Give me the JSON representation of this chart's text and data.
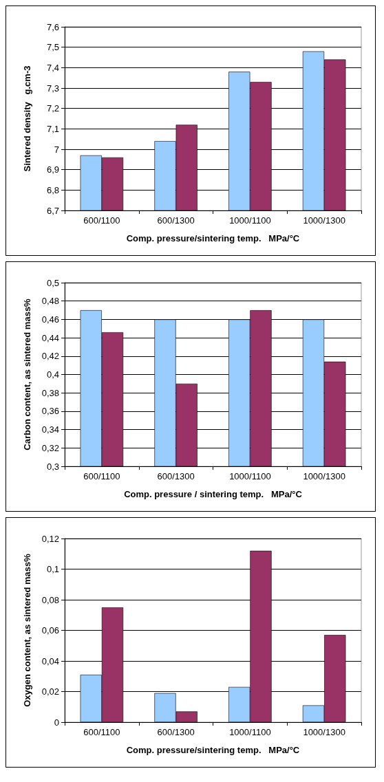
{
  "chart_data": [
    {
      "type": "bar",
      "xlabel": "Comp. pressure/sintering temp.   MPa/°C",
      "ylabel": "Sintered density   g.cm-3",
      "categories": [
        "600/1100",
        "600/1300",
        "1000/1100",
        "1000/1300"
      ],
      "series": [
        {
          "color": "#99ccff",
          "values": [
            6.97,
            7.04,
            7.38,
            7.48
          ]
        },
        {
          "color": "#993366",
          "values": [
            6.96,
            7.12,
            7.33,
            7.44
          ]
        }
      ],
      "ylim": [
        6.7,
        7.6
      ],
      "yticks": [
        {
          "value": 6.7,
          "label": "6,7"
        },
        {
          "value": 6.8,
          "label": "6,8"
        },
        {
          "value": 6.9,
          "label": "6,9"
        },
        7,
        {
          "value": 7.1,
          "label": "7,1"
        },
        {
          "value": 7.2,
          "label": "7,2"
        },
        {
          "value": 7.3,
          "label": "7,3"
        },
        {
          "value": 7.4,
          "label": "7,4"
        },
        {
          "value": 7.5,
          "label": "7,5"
        },
        {
          "value": 7.6,
          "label": "7,6"
        }
      ],
      "grid": "y"
    },
    {
      "type": "bar",
      "xlabel": "Comp. pressure / sintering temp.   MPa/°C",
      "ylabel": "Carbon content, as sintered mass%",
      "categories": [
        "600/1100",
        "600/1300",
        "1000/1100",
        "1000/1300"
      ],
      "series": [
        {
          "color": "#99ccff",
          "values": [
            0.47,
            0.46,
            0.46,
            0.46
          ]
        },
        {
          "color": "#993366",
          "values": [
            0.446,
            0.39,
            0.47,
            0.414
          ]
        }
      ],
      "ylim": [
        0.3,
        0.5
      ],
      "yticks": [
        {
          "value": 0.3,
          "label": "0,3"
        },
        {
          "value": 0.32,
          "label": "0,32"
        },
        {
          "value": 0.34,
          "label": "0,34"
        },
        {
          "value": 0.36,
          "label": "0,36"
        },
        {
          "value": 0.38,
          "label": "0,38"
        },
        {
          "value": 0.4,
          "label": "0,4"
        },
        {
          "value": 0.42,
          "label": "0,42"
        },
        {
          "value": 0.44,
          "label": "0,44"
        },
        {
          "value": 0.46,
          "label": "0,46"
        },
        {
          "value": 0.48,
          "label": "0,48"
        },
        {
          "value": 0.5,
          "label": "0,5"
        }
      ],
      "grid": "y"
    },
    {
      "type": "bar",
      "xlabel": "Comp. pressure/sintering temp.   MPa/°C",
      "ylabel": "Oxygen content, as sintered mass%",
      "categories": [
        "600/1100",
        "600/1300",
        "1000/1100",
        "1000/1300"
      ],
      "series": [
        {
          "color": "#99ccff",
          "values": [
            0.031,
            0.019,
            0.023,
            0.011
          ]
        },
        {
          "color": "#993366",
          "values": [
            0.075,
            0.007,
            0.112,
            0.057
          ]
        }
      ],
      "ylim": [
        0,
        0.12
      ],
      "yticks": [
        0,
        {
          "value": 0.02,
          "label": "0,02"
        },
        {
          "value": 0.04,
          "label": "0,04"
        },
        {
          "value": 0.06,
          "label": "0,06"
        },
        {
          "value": 0.08,
          "label": "0,08"
        },
        {
          "value": 0.1,
          "label": "0,1"
        },
        {
          "value": 0.12,
          "label": "0,12"
        }
      ],
      "grid": "y"
    }
  ]
}
